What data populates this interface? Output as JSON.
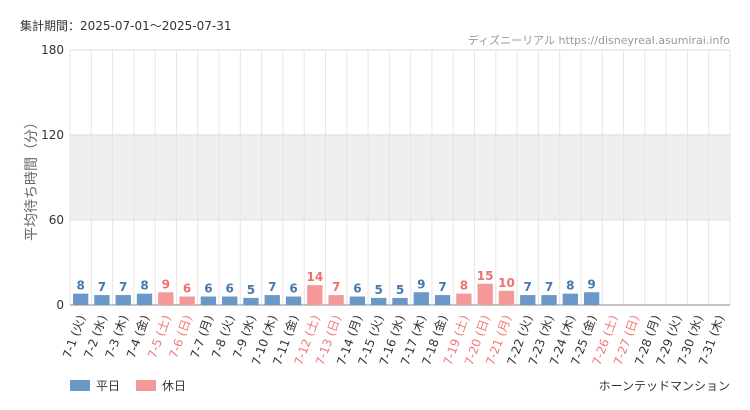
{
  "header": {
    "period": "集計期間：2025-07-01～2025-07-31",
    "source": "ディズニーリアル https://disneyreal.asumirai.info"
  },
  "footer": {
    "attraction": "ホーンテッドマンション"
  },
  "colors": {
    "weekday": "#6a98c8",
    "holiday": "#f59898",
    "band": "#efefef"
  },
  "chart_data": {
    "type": "bar",
    "ylabel": "平均待ち時間（分）",
    "ylim": [
      0,
      180
    ],
    "yticks": [
      0,
      60,
      120,
      180
    ],
    "legend": [
      {
        "name": "平日",
        "key": "weekday"
      },
      {
        "name": "休日",
        "key": "holiday"
      }
    ],
    "categories": [
      "7-1 (火)",
      "7-2 (水)",
      "7-3 (木)",
      "7-4 (金)",
      "7-5 (土)",
      "7-6 (日)",
      "7-7 (月)",
      "7-8 (火)",
      "7-9 (水)",
      "7-10 (木)",
      "7-11 (金)",
      "7-12 (土)",
      "7-13 (日)",
      "7-14 (月)",
      "7-15 (火)",
      "7-16 (水)",
      "7-17 (木)",
      "7-18 (金)",
      "7-19 (土)",
      "7-20 (日)",
      "7-21 (月)",
      "7-22 (火)",
      "7-23 (水)",
      "7-24 (木)",
      "7-25 (金)",
      "7-26 (土)",
      "7-27 (日)",
      "7-28 (月)",
      "7-29 (火)",
      "7-30 (水)",
      "7-31 (木)"
    ],
    "values": [
      8,
      7,
      7,
      8,
      9,
      6,
      6,
      6,
      5,
      7,
      6,
      14,
      7,
      6,
      5,
      5,
      9,
      7,
      8,
      15,
      10,
      7,
      7,
      8,
      9,
      null,
      null,
      null,
      null,
      null,
      null
    ],
    "day_type": [
      "weekday",
      "weekday",
      "weekday",
      "weekday",
      "holiday",
      "holiday",
      "weekday",
      "weekday",
      "weekday",
      "weekday",
      "weekday",
      "holiday",
      "holiday",
      "weekday",
      "weekday",
      "weekday",
      "weekday",
      "weekday",
      "holiday",
      "holiday",
      "holiday",
      "weekday",
      "weekday",
      "weekday",
      "weekday",
      "holiday",
      "holiday",
      "weekday",
      "weekday",
      "weekday",
      "weekday"
    ]
  }
}
